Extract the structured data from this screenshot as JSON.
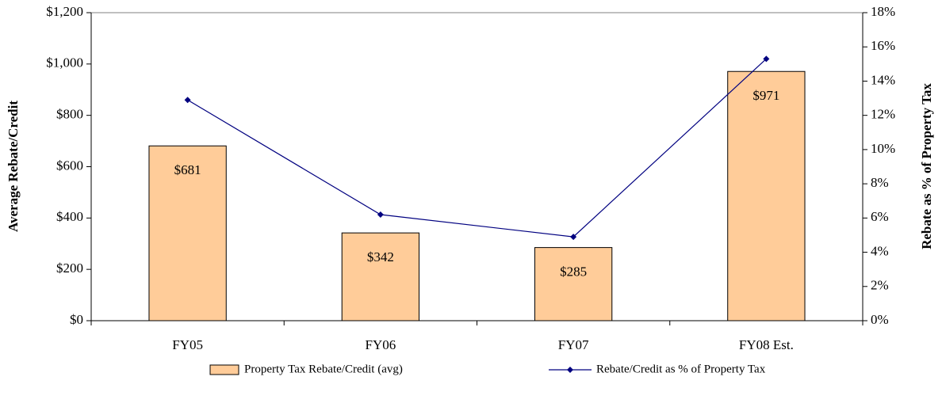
{
  "chart_data": {
    "type": "bar",
    "categories": [
      "FY05",
      "FY06",
      "FY07",
      "FY08 Est."
    ],
    "series": [
      {
        "name": "Property Tax Rebate/Credit (avg)",
        "color": "#ffcc99",
        "values": [
          681,
          342,
          285,
          971
        ],
        "value_labels": [
          "$681",
          "$342",
          "$285",
          "$971"
        ]
      },
      {
        "name": "Rebate/Credit as % of Property Tax",
        "color": "#000080",
        "type": "line",
        "axis": "y2",
        "values": [
          12.9,
          6.2,
          4.9,
          15.3
        ]
      }
    ],
    "ylabel": "Average Rebate/Credit",
    "y2label": "Rebate as % of Property Tax",
    "ylim": [
      0,
      1200
    ],
    "yticks": [
      {
        "value": 0,
        "label": "$0"
      },
      {
        "value": 200,
        "label": "$200"
      },
      {
        "value": 400,
        "label": "$400"
      },
      {
        "value": 600,
        "label": "$600"
      },
      {
        "value": 800,
        "label": "$800"
      },
      {
        "value": 1000,
        "label": "$1,000"
      },
      {
        "value": 1200,
        "label": "$1,200"
      }
    ],
    "y2lim": [
      0,
      18
    ],
    "y2ticks": [
      {
        "value": 0,
        "label": "0%"
      },
      {
        "value": 2,
        "label": "2%"
      },
      {
        "value": 4,
        "label": "4%"
      },
      {
        "value": 6,
        "label": "6%"
      },
      {
        "value": 8,
        "label": "8%"
      },
      {
        "value": 10,
        "label": "10%"
      },
      {
        "value": 12,
        "label": "12%"
      },
      {
        "value": 14,
        "label": "14%"
      },
      {
        "value": 16,
        "label": "16%"
      },
      {
        "value": 18,
        "label": "18%"
      }
    ],
    "legend": "bottom"
  }
}
